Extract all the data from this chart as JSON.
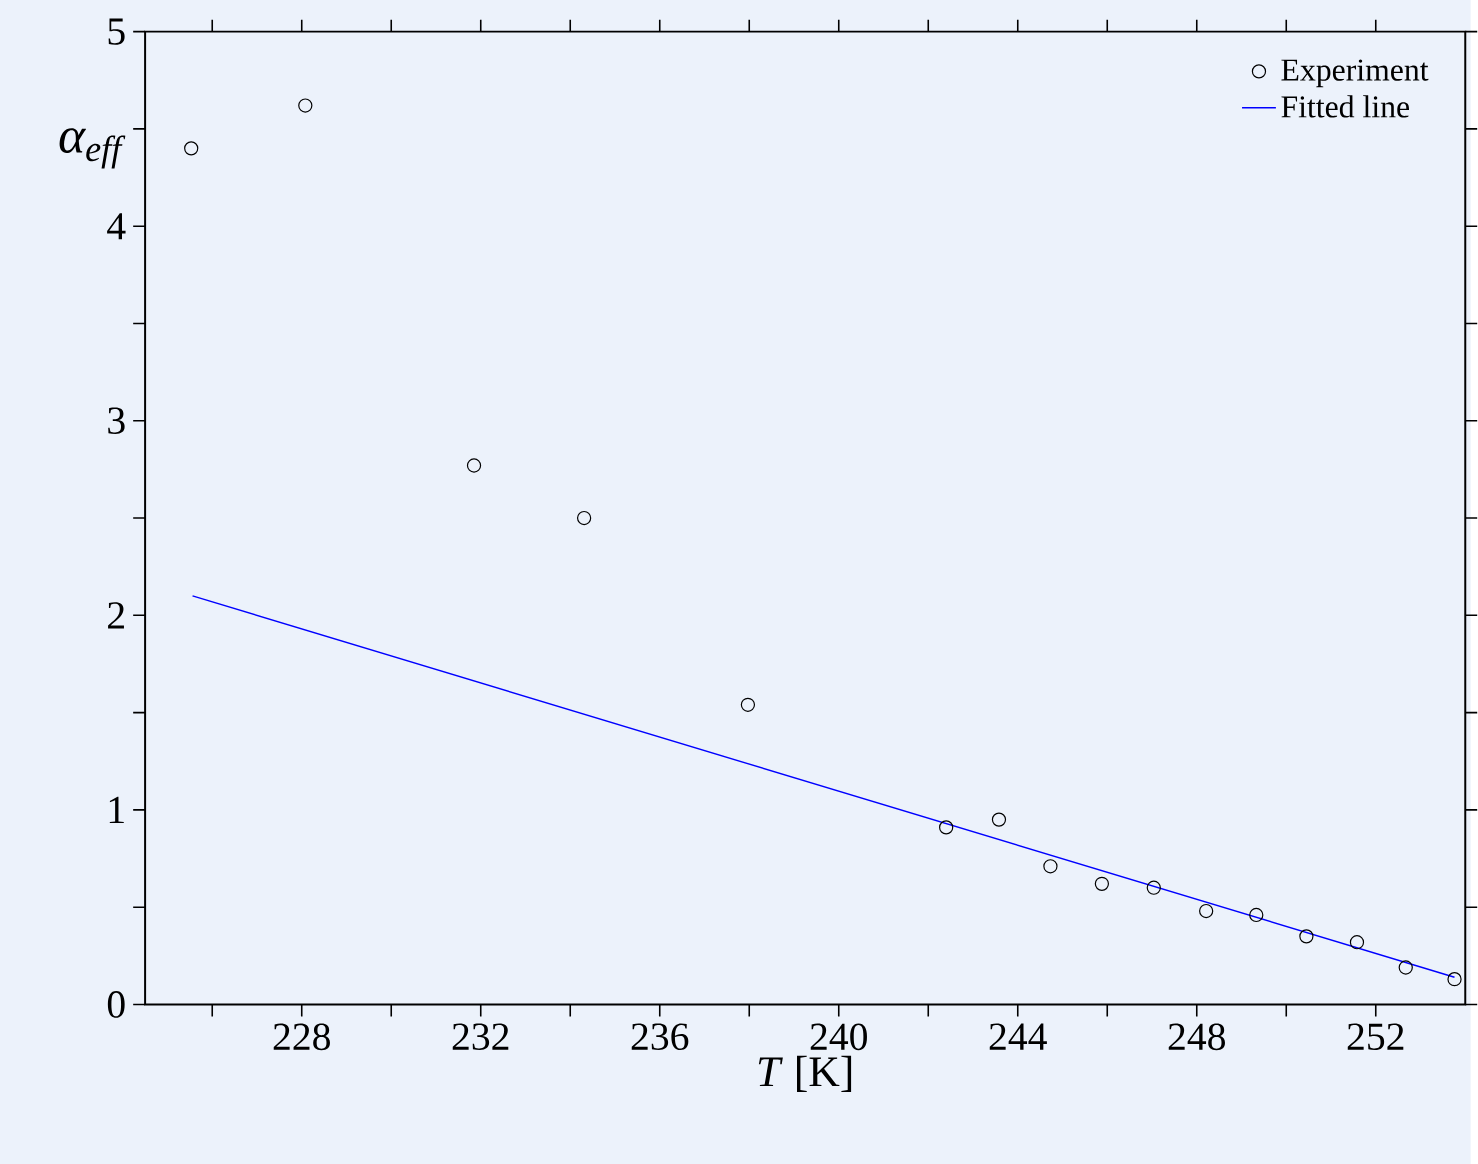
{
  "chart_data": {
    "type": "scatter",
    "xlabel": "*T* [K]",
    "ylabel": "α$_{eff}$",
    "xlim": [
      224.5,
      254
    ],
    "ylim": [
      0,
      5
    ],
    "xticks": [
      {
        "value": 226,
        "label": null
      },
      228,
      {
        "value": 230,
        "label": null
      },
      232,
      {
        "value": 234,
        "label": null
      },
      236,
      {
        "value": 238,
        "label": null
      },
      240,
      {
        "value": 242,
        "label": null
      },
      244,
      {
        "value": 246,
        "label": null
      },
      248,
      {
        "value": 250,
        "label": null
      },
      252
    ],
    "yticks": [
      0,
      {
        "value": 0.5,
        "label": null
      },
      1,
      {
        "value": 1.5,
        "label": null
      },
      2,
      {
        "value": 2.5,
        "label": null
      },
      3,
      {
        "value": 3.5,
        "label": null
      },
      4,
      {
        "value": 4.5,
        "label": null
      },
      5
    ],
    "legend": "top right",
    "grid": false,
    "series": [
      {
        "name": "Experiment",
        "marker": "circle",
        "color": "#000000",
        "x": [
          225.53,
          228.08,
          231.85,
          234.31,
          237.97,
          242.4,
          243.58,
          244.73,
          245.88,
          247.04,
          248.21,
          249.33,
          250.45,
          251.58,
          252.67,
          253.76
        ],
        "values": [
          4.4,
          4.62,
          2.77,
          2.5,
          1.54,
          0.91,
          0.95,
          0.71,
          0.62,
          0.6,
          0.48,
          0.46,
          0.35,
          0.32,
          0.19,
          0.13
        ]
      },
      {
        "name": "Fitted line",
        "type": "line",
        "marker": "none",
        "line_style": "solid",
        "color": "#0000ff",
        "x": [
          225.56,
          253.76
        ],
        "values": [
          2.1,
          0.14
        ]
      }
    ]
  }
}
